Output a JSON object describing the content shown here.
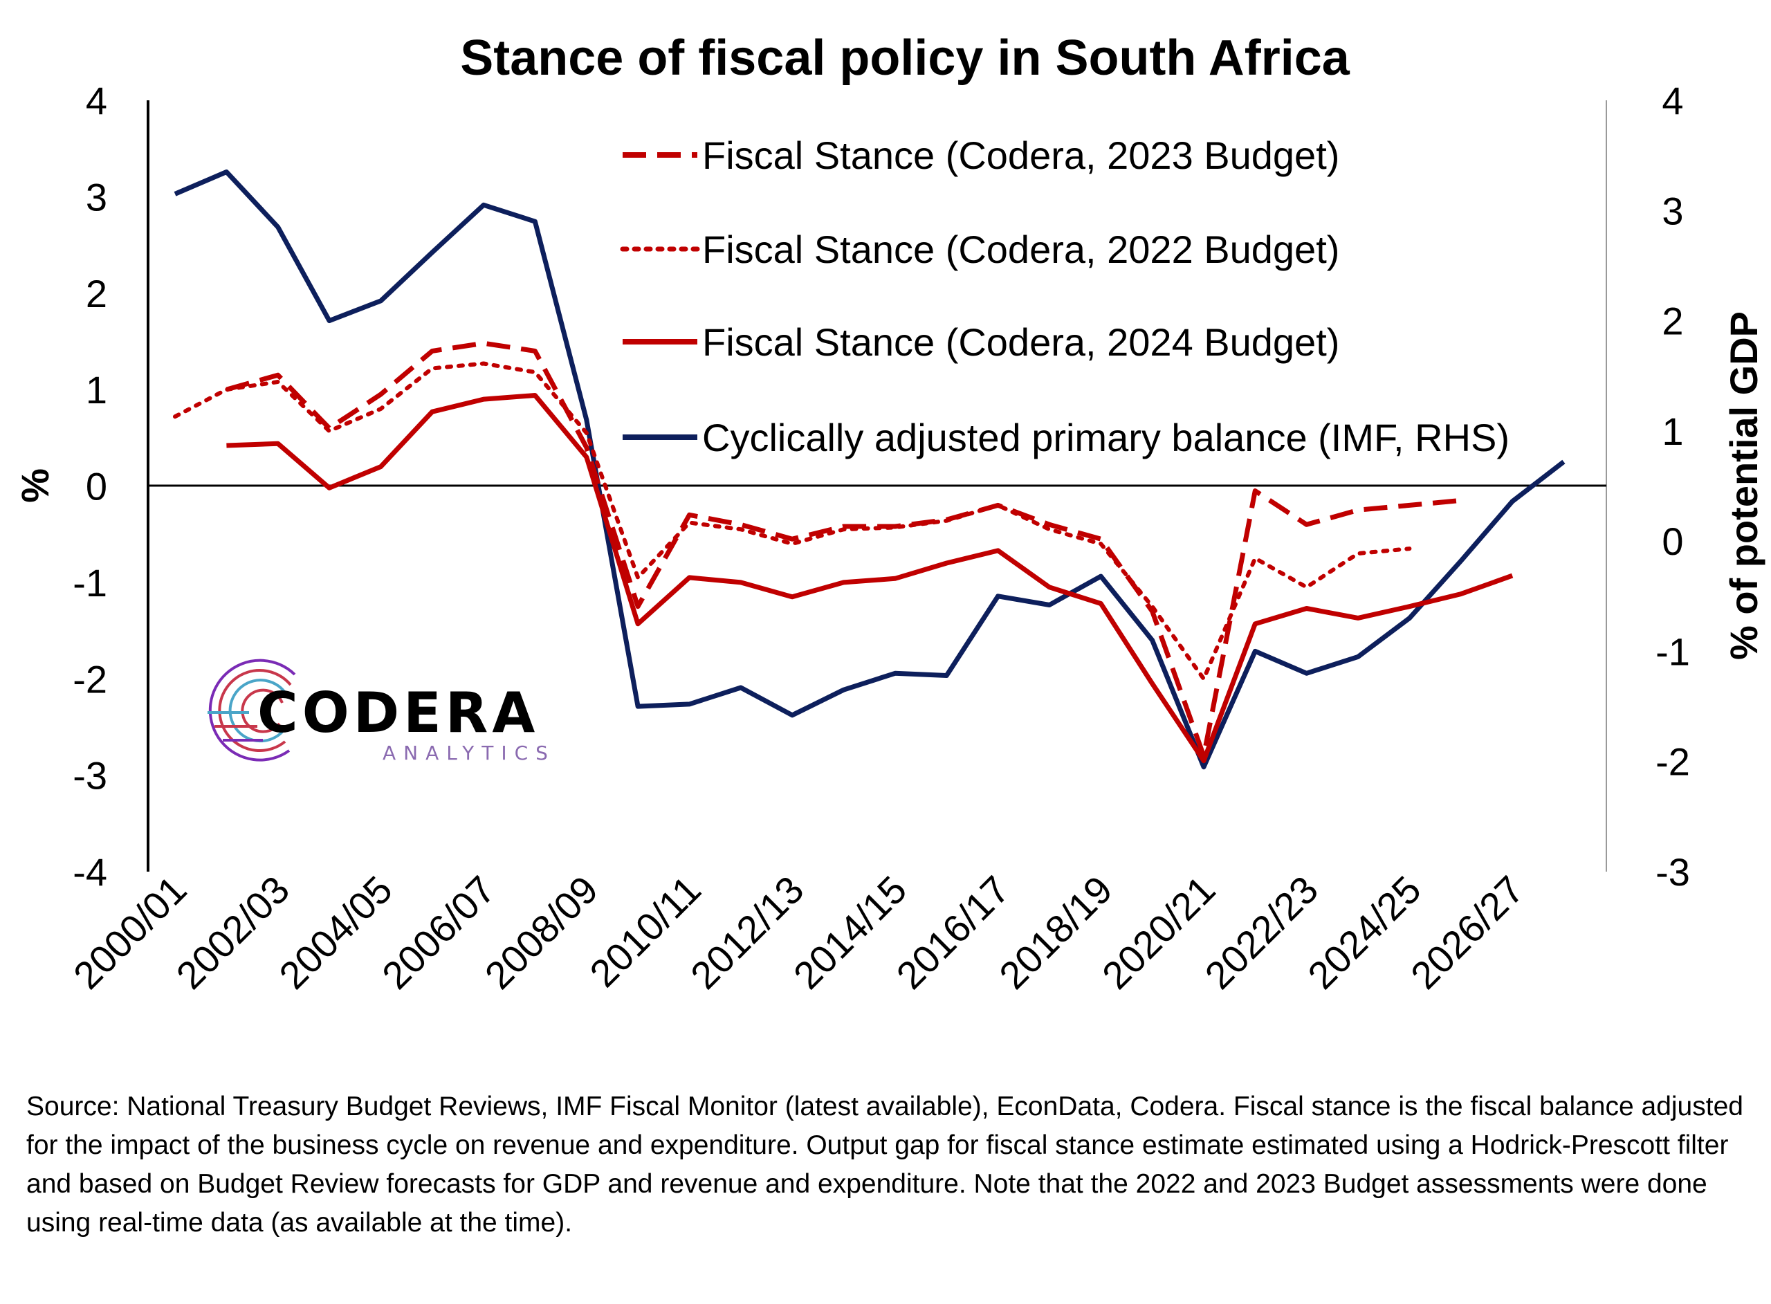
{
  "chart_data": {
    "type": "line",
    "title": "Stance of fiscal policy in South Africa",
    "ylabel_left": "%",
    "ylabel_right": "% of potential GDP",
    "ylim_left": [
      -4,
      4
    ],
    "ylim_right": [
      -3,
      4
    ],
    "yticks_left": [
      "4",
      "3",
      "2",
      "1",
      "0",
      "-1",
      "-2",
      "-3",
      "-4"
    ],
    "yticks_right": [
      "4",
      "3",
      "2",
      "1",
      "0",
      "-1",
      "-2",
      "-3"
    ],
    "x": [
      "2000/01",
      "2001/02",
      "2002/03",
      "2003/04",
      "2004/05",
      "2005/06",
      "2006/07",
      "2007/08",
      "2008/09",
      "2009/10",
      "2010/11",
      "2011/12",
      "2012/13",
      "2013/14",
      "2014/15",
      "2015/16",
      "2016/17",
      "2017/18",
      "2018/19",
      "2019/20",
      "2020/21",
      "2021/22",
      "2022/23",
      "2023/24",
      "2024/25",
      "2025/26",
      "2026/27",
      "2027/28"
    ],
    "xtick_labels": [
      "2000/01",
      "2002/03",
      "2004/05",
      "2006/07",
      "2008/09",
      "2010/11",
      "2012/13",
      "2014/15",
      "2016/17",
      "2018/19",
      "2020/21",
      "2022/23",
      "2024/25",
      "2026/27"
    ],
    "legend_position": "top-right",
    "series": [
      {
        "name": "Fiscal Stance (Codera, 2023 Budget)",
        "axis": "left",
        "color": "#C00000",
        "style": "dashed",
        "values": [
          null,
          1.0,
          1.15,
          0.6,
          0.95,
          1.4,
          1.48,
          1.4,
          0.4,
          -1.25,
          -0.3,
          -0.4,
          -0.55,
          -0.42,
          -0.42,
          -0.35,
          -0.2,
          -0.4,
          -0.55,
          -1.3,
          -2.8,
          -0.05,
          -0.4,
          -0.25,
          -0.2,
          -0.15,
          null,
          null
        ]
      },
      {
        "name": "Fiscal Stance (Codera, 2022 Budget)",
        "axis": "left",
        "color": "#C00000",
        "style": "dotted",
        "values": [
          0.72,
          1.0,
          1.08,
          0.57,
          0.8,
          1.22,
          1.27,
          1.18,
          0.55,
          -0.95,
          -0.38,
          -0.45,
          -0.6,
          -0.45,
          -0.43,
          -0.36,
          -0.2,
          -0.45,
          -0.6,
          -1.25,
          -2.0,
          -0.75,
          -1.05,
          -0.7,
          -0.65,
          null,
          null,
          null
        ]
      },
      {
        "name": "Fiscal Stance (Codera, 2024 Budget)",
        "axis": "left",
        "color": "#C00000",
        "style": "solid",
        "values": [
          null,
          0.42,
          0.44,
          -0.02,
          0.2,
          0.77,
          0.9,
          0.94,
          0.3,
          -1.43,
          -0.95,
          -1.0,
          -1.15,
          -1.0,
          -0.96,
          -0.8,
          -0.67,
          -1.05,
          -1.22,
          -2.05,
          -2.85,
          -1.43,
          -1.27,
          -1.37,
          -1.25,
          -1.12,
          -0.93,
          null
        ]
      },
      {
        "name": "Cyclically adjusted primary balance (IMF, RHS)",
        "axis": "right",
        "color": "#0D1F5C",
        "style": "solid",
        "values": [
          3.15,
          3.35,
          2.85,
          2.0,
          2.18,
          2.62,
          3.05,
          2.9,
          1.1,
          -1.5,
          -1.48,
          -1.33,
          -1.58,
          -1.35,
          -1.2,
          -1.22,
          -0.5,
          -0.58,
          -0.32,
          -0.9,
          -2.05,
          -1.0,
          -1.2,
          -1.05,
          -0.7,
          -0.18,
          0.36,
          0.72
        ]
      }
    ]
  },
  "logo": {
    "main": "CODERA",
    "sub": "ANALYTICS"
  },
  "source_note": "Source: National Treasury Budget Reviews, IMF Fiscal Monitor (latest available), EconData, Codera. Fiscal stance is the fiscal balance adjusted for the impact of the business cycle on revenue and expenditure. Output gap for fiscal stance estimate estimated using a Hodrick-Prescott filter and based on Budget Review forecasts for GDP and revenue and expenditure. Note that the 2022 and 2023 Budget assessments were done using real-time data (as available at the time)."
}
